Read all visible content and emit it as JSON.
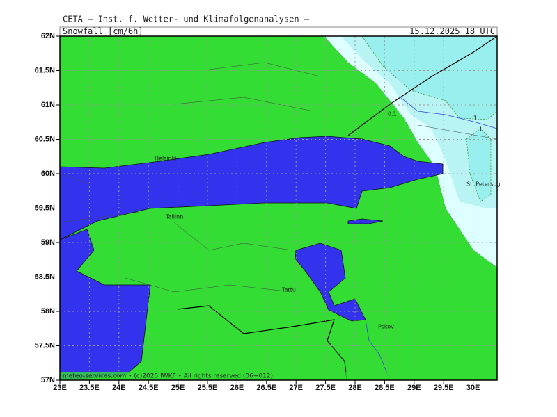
{
  "header": {
    "title": "CETA — Inst. f. Wetter- und Klimafolgenanalysen —",
    "parameter": "Snowfall [cm/6h]",
    "valid_time": "15.12.2025 18 UTC"
  },
  "map": {
    "lat_labels": [
      "62N",
      "61.5N",
      "61N",
      "60.5N",
      "60N",
      "59.5N",
      "59N",
      "58.5N",
      "58N",
      "57.5N",
      "57N"
    ],
    "lon_labels": [
      "23E",
      "23.5E",
      "24E",
      "24.5E",
      "25E",
      "25.5E",
      "26E",
      "26.5E",
      "27E",
      "27.5E",
      "28E",
      "28.5E",
      "29E",
      "29.5E",
      "30E"
    ],
    "places": [
      "Helsinki",
      "Tallinn",
      "Tartu",
      "Pskov",
      "St. Petersbg."
    ],
    "contour_labels": [
      "0.1",
      "1",
      "1"
    ]
  },
  "footer": "meteo-services.com • (c)2025 IWKF • All rights reserved (06+012)"
}
